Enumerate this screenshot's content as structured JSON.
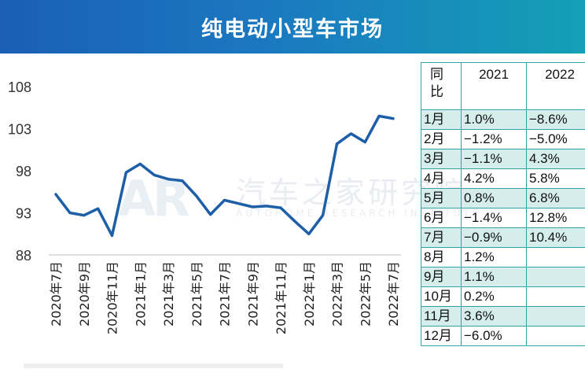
{
  "title": "纯电动小型车市场",
  "watermark": {
    "logo": "AR",
    "name_cn": "汽车之家研究院",
    "name_en": "AUTOHOME RESEARCH INSTITUTE"
  },
  "colors": {
    "banner_start": "#1a5fb4",
    "banner_end": "#13a0b6",
    "line": "#1c5fa8",
    "table_border": "#3aa0a8",
    "table_shade": "#d5eeec"
  },
  "chart_data": {
    "type": "line",
    "title": "",
    "xlabel": "",
    "ylabel": "",
    "ylim": [
      88,
      108
    ],
    "yticks": [
      88,
      93,
      98,
      103,
      108
    ],
    "x": [
      "2020年7月",
      "2020年8月",
      "2020年9月",
      "2020年10月",
      "2020年11月",
      "2020年12月",
      "2021年1月",
      "2021年2月",
      "2021年3月",
      "2021年4月",
      "2021年5月",
      "2021年6月",
      "2021年7月",
      "2021年8月",
      "2021年9月",
      "2021年10月",
      "2021年11月",
      "2021年12月",
      "2022年1月",
      "2022年2月",
      "2022年3月",
      "2022年4月",
      "2022年5月",
      "2022年6月",
      "2022年7月"
    ],
    "xtick_labels": [
      "2020年7月",
      "2020年9月",
      "2020年11月",
      "2021年1月",
      "2021年3月",
      "2021年5月",
      "2021年7月",
      "2021年9月",
      "2021年11月",
      "2022年1月",
      "2022年3月",
      "2022年5月",
      "2022年7月"
    ],
    "series": [
      {
        "values": [
          95.2,
          93.0,
          92.7,
          93.5,
          90.3,
          97.8,
          98.8,
          97.5,
          97.0,
          96.8,
          95.0,
          92.8,
          94.5,
          94.1,
          93.7,
          93.8,
          93.6,
          92.0,
          90.5,
          92.7,
          101.2,
          102.4,
          101.4,
          104.5,
          104.2
        ]
      }
    ],
    "grid": false,
    "legend": "none"
  },
  "table": {
    "header": {
      "label": "同\n比",
      "y2021": "2021",
      "y2022": "2022"
    },
    "rows": [
      {
        "month": "1月",
        "v2021": "1.0%",
        "v2022": "−8.6%",
        "shaded": true
      },
      {
        "month": "2月",
        "v2021": "−1.2%",
        "v2022": "−5.0%",
        "shaded": false
      },
      {
        "month": "3月",
        "v2021": "−1.1%",
        "v2022": "4.3%",
        "shaded": true
      },
      {
        "month": "4月",
        "v2021": "4.2%",
        "v2022": "5.8%",
        "shaded": false
      },
      {
        "month": "5月",
        "v2021": "0.8%",
        "v2022": "6.8%",
        "shaded": true
      },
      {
        "month": "6月",
        "v2021": "−1.4%",
        "v2022": "12.8%",
        "shaded": false
      },
      {
        "month": "7月",
        "v2021": "−0.9%",
        "v2022": "10.4%",
        "shaded": true
      },
      {
        "month": "8月",
        "v2021": "1.2%",
        "v2022": "",
        "shaded": false
      },
      {
        "month": "9月",
        "v2021": "1.1%",
        "v2022": "",
        "shaded": true
      },
      {
        "month": "10月",
        "v2021": "0.2%",
        "v2022": "",
        "shaded": false
      },
      {
        "month": "11月",
        "v2021": "3.6%",
        "v2022": "",
        "shaded": true
      },
      {
        "month": "12月",
        "v2021": "−6.0%",
        "v2022": "",
        "shaded": false
      }
    ]
  }
}
